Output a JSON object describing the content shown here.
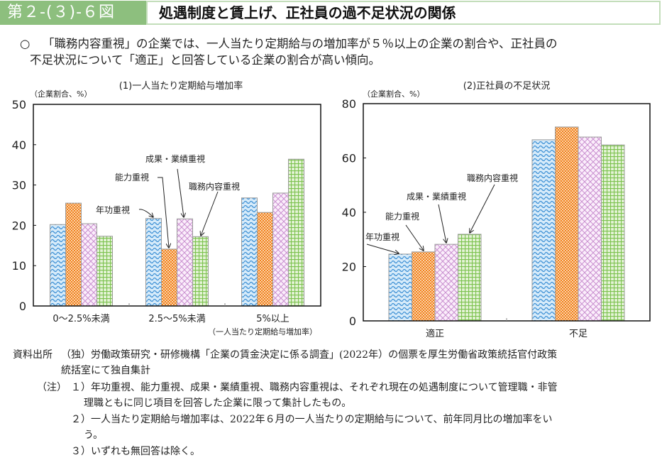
{
  "header": {
    "figure_number": "第２-(３)-６図",
    "title": "処遇制度と賃上げ、正社員の過不足状況の関係"
  },
  "summary": {
    "bullet": "○",
    "line1": "「職務内容重視」の企業では、一人当たり定期給与の増加率が５％以上の企業の割合や、正社員の",
    "line2": "不足状況について「適正」と回答している企業の割合が高い傾向。"
  },
  "colors": {
    "nenko": "#3b8fd4",
    "noryoku": "#f07f1c",
    "seika": "#c98fcf",
    "shokumu": "#7cc24f",
    "header_green": "#8dbf7e"
  },
  "chart_data": [
    {
      "type": "bar",
      "title": "(1)一人当たり定期給与増加率",
      "ylabel": "（企業割合、%）",
      "xlabel": "（一人当たり定期給与増加率）",
      "ylim": [
        0,
        50
      ],
      "yticks": [
        0,
        10,
        20,
        30,
        40,
        50
      ],
      "categories": [
        "0～2.5%未満",
        "2.5～5%未満",
        "5%以上"
      ],
      "series": [
        {
          "name": "年功重視",
          "values": [
            20.2,
            21.7,
            26.8
          ]
        },
        {
          "name": "能力重視",
          "values": [
            25.5,
            14.1,
            23.2
          ]
        },
        {
          "name": "成果・業績重視",
          "values": [
            20.4,
            21.6,
            28.0
          ]
        },
        {
          "name": "職務内容重視",
          "values": [
            17.3,
            17.2,
            36.4
          ]
        }
      ],
      "annotations": [
        "年功重視",
        "能力重視",
        "成果・業績重視",
        "職務内容重視"
      ],
      "grid": false
    },
    {
      "type": "bar",
      "title": "(2)正社員の不足状況",
      "ylabel": "（企業割合、%）",
      "xlabel": "",
      "ylim": [
        0,
        80
      ],
      "yticks": [
        0,
        20,
        40,
        60,
        80
      ],
      "categories": [
        "適正",
        "不足"
      ],
      "series": [
        {
          "name": "年功重視",
          "values": [
            24.6,
            66.7
          ]
        },
        {
          "name": "能力重視",
          "values": [
            25.4,
            71.4
          ]
        },
        {
          "name": "成果・業績重視",
          "values": [
            28.2,
            67.7
          ]
        },
        {
          "name": "職務内容重視",
          "values": [
            31.9,
            64.8
          ]
        }
      ],
      "annotations": [
        "年功重視",
        "能力重視",
        "成果・業績重視",
        "職務内容重視"
      ],
      "grid": false
    }
  ],
  "notes": {
    "source_label": "資料出所",
    "source_line1": "（独）労働政策研究・研修機構「企業の賃金決定に係る調査」(2022年）の個票を厚生労働省政策統括官付政策",
    "source_line2": "統括室にて独自集計",
    "note_label": "（注）",
    "note1_line1": "１）年功重視、能力重視、成果・業績重視、職務内容重視は、それぞれ現在の処遇制度について管理職・非管",
    "note1_line2": "理職ともに同じ項目を回答した企業に限って集計したもの。",
    "note2_line1": "２）一人当たり定期給与増加率は、2022年６月の一人当たりの定期給与について、前年同月比の増加率をい",
    "note2_line2": "う。",
    "note3": "３）いずれも無回答は除く。"
  }
}
